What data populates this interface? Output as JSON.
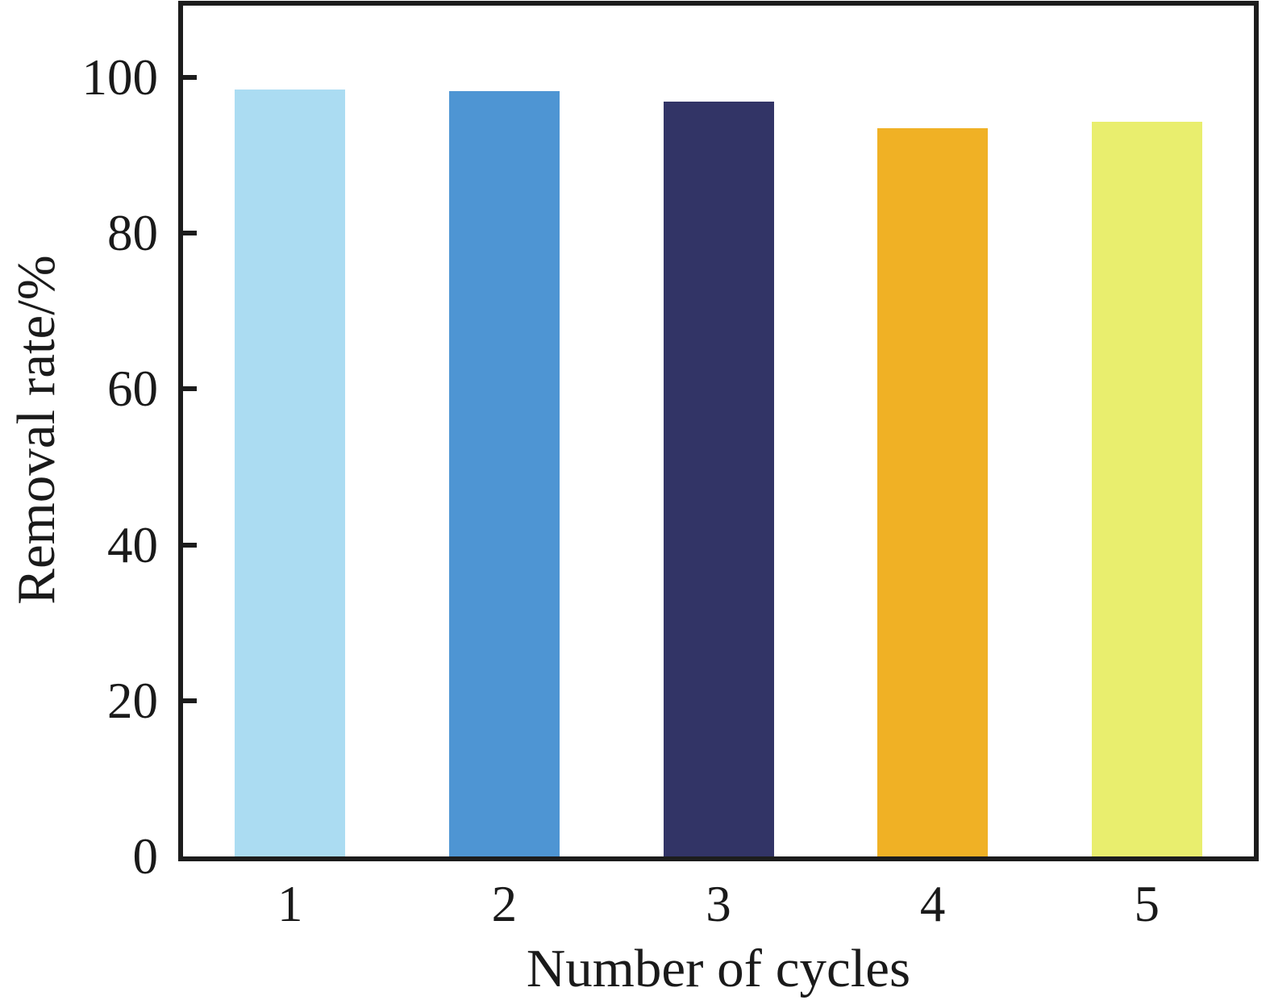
{
  "figure": {
    "background": "#ffffff",
    "axis_color": "#1c1c1c",
    "text_color": "#1a1a1a"
  },
  "chart_data": {
    "type": "bar",
    "title": "",
    "xlabel": "Number of cycles",
    "ylabel": "Removal rate/%",
    "categories": [
      "1",
      "2",
      "3",
      "4",
      "5"
    ],
    "values": [
      98.4,
      98.2,
      96.9,
      93.5,
      94.3
    ],
    "bar_colors": [
      "#abdcf2",
      "#4e95d3",
      "#323466",
      "#f0b125",
      "#e9ee6e"
    ],
    "ylim": [
      0,
      109
    ],
    "yticks": [
      0,
      20,
      40,
      60,
      80,
      100
    ],
    "grid": false,
    "legend": "none",
    "tick_direction": "in"
  }
}
